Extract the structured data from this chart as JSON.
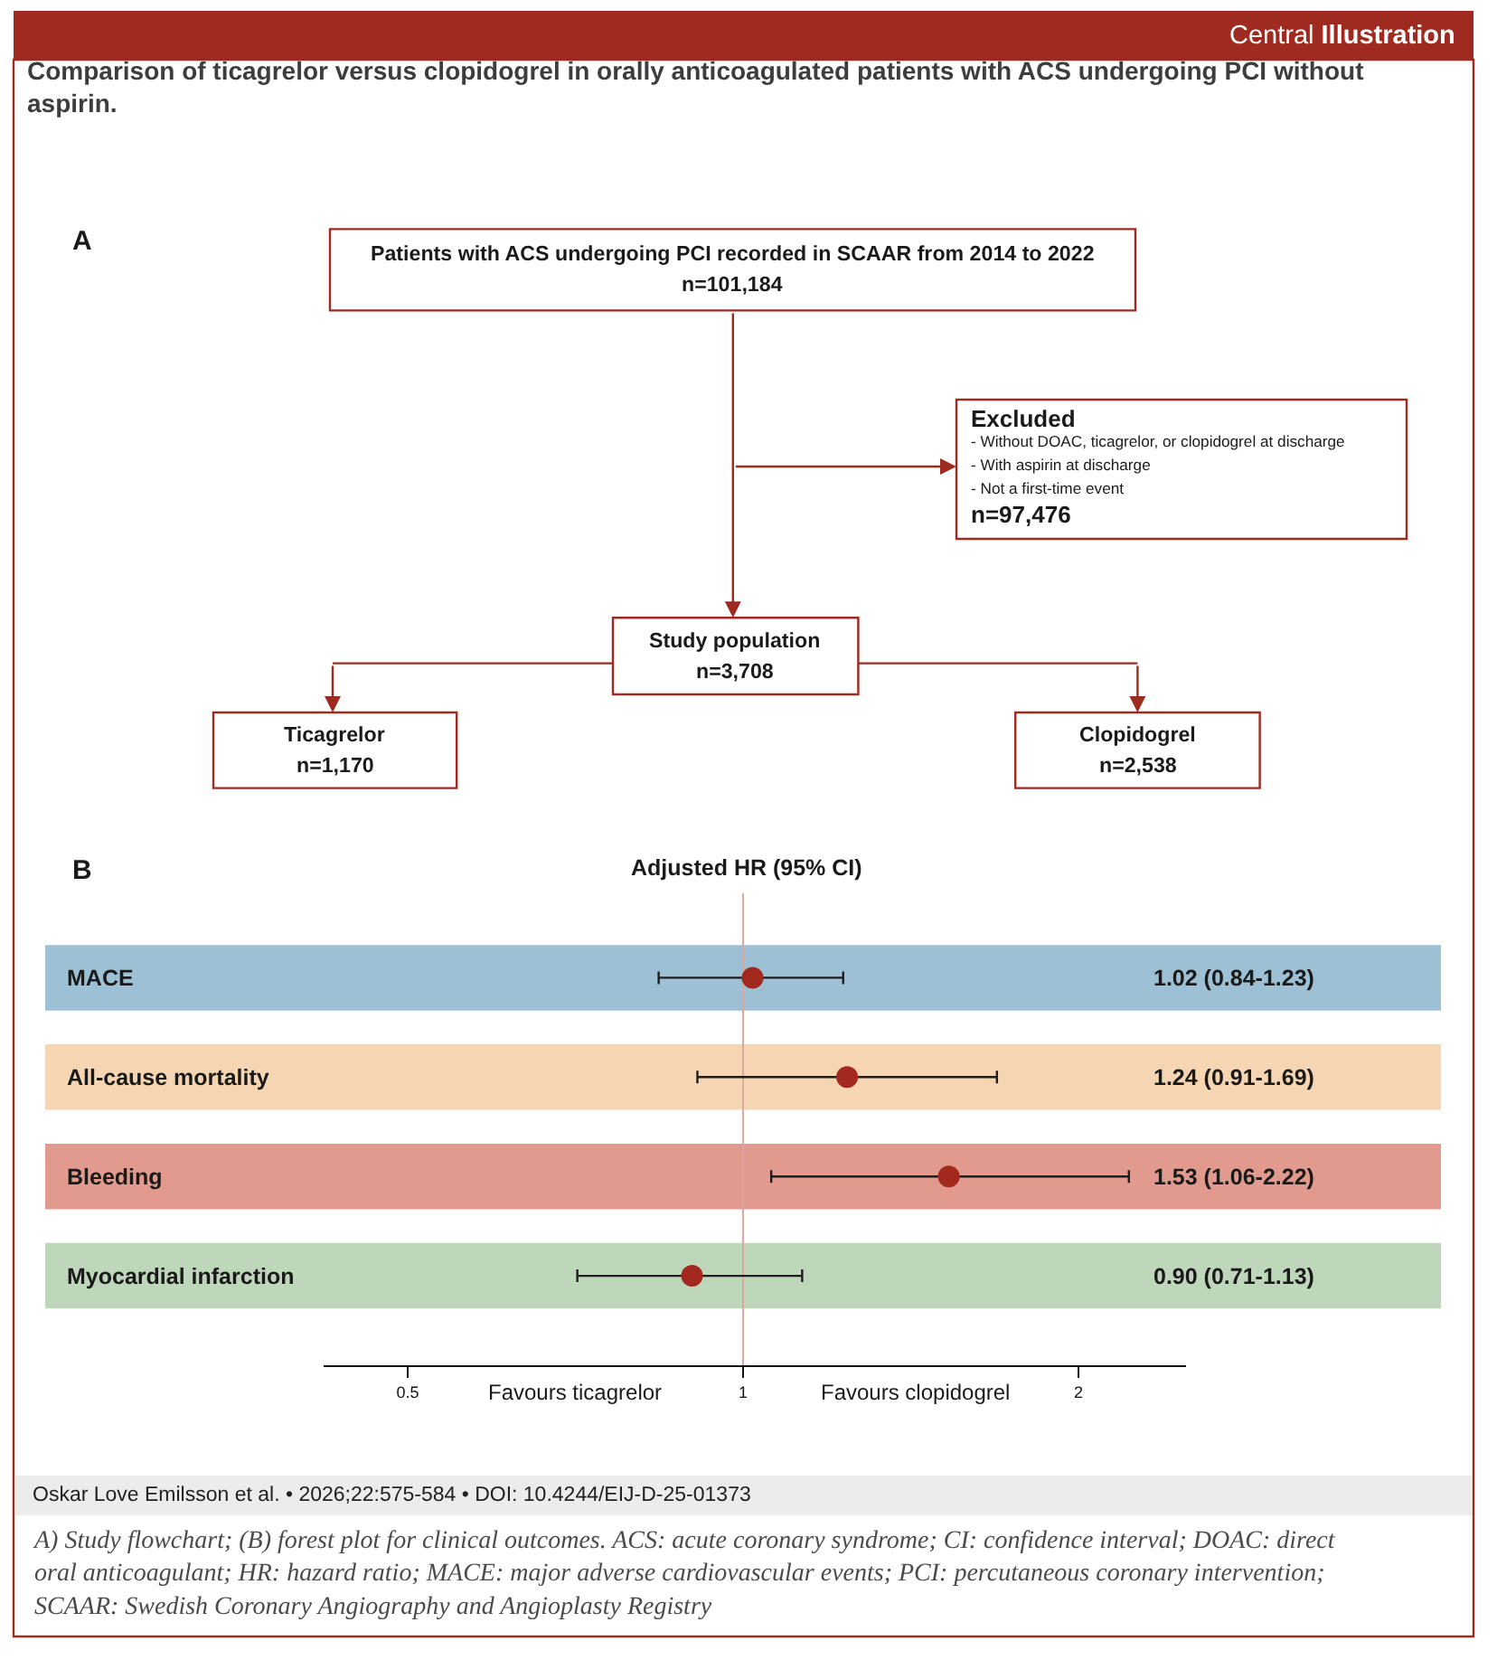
{
  "chart_data": [
    {
      "type": "other",
      "title": "Comparison of ticagrelor versus clopidogrel in orally anticoagulated patients with ACS undergoing PCI without\naspirin.",
      "annotations": [
        "Central Illustration",
        "A",
        "Patients with ACS undergoing PCI recorded in SCAAR from 2014 to 2022\nn=101,184",
        "Excluded\n- Without DOAC, ticagrelor, or clopidogrel at discharge\n- With aspirin at discharge\n- Not a first-time event\nn=97,476",
        "Study population\nn=3,708",
        "Ticagrelor\nn=1,170",
        "Clopidogrel\nn=2,538"
      ]
    },
    {
      "type": "scatter",
      "orientation": "horizontal",
      "title": "Adjusted HR (95% CI)",
      "categories": [
        "MACE",
        "All-cause mortality",
        "Bleeding",
        "Myocardial infarction"
      ],
      "values": [
        1.02,
        1.24,
        1.53,
        0.9
      ],
      "errors": [
        [
          0.84,
          1.23
        ],
        [
          0.91,
          1.69
        ],
        [
          1.06,
          2.22
        ],
        [
          0.71,
          1.13
        ]
      ],
      "value_labels": [
        "1.02 (0.84-1.23)",
        "1.24 (0.91-1.69)",
        "1.53 (1.06-2.22)",
        "0.90 (0.71-1.13)"
      ],
      "color": "#a3281e",
      "marker": "circle",
      "log": "x",
      "xlim": [
        0.42,
        2.5
      ],
      "xticks": [
        0.5,
        1,
        2
      ],
      "ref_lines": [
        {
          "axis": "x",
          "value": 1,
          "color": "#d9a89e"
        }
      ],
      "bands": [
        {
          "axis": "y",
          "from": "MACE",
          "to": "MACE",
          "color": "#9dc0d5"
        },
        {
          "axis": "y",
          "from": "All-cause mortality",
          "to": "All-cause mortality",
          "color": "#f6d6b2"
        },
        {
          "axis": "y",
          "from": "Bleeding",
          "to": "Bleeding",
          "color": "#e19a8d"
        },
        {
          "axis": "y",
          "from": "Myocardial infarction",
          "to": "Myocardial infarction",
          "color": "#bed6ba"
        }
      ],
      "annotations": [
        "B",
        "Favours ticagrelor",
        "Favours clopidogrel",
        "Oskar Love Emilsson et al. • 2026;22:575-584 • DOI: 10.4244/EIJ-D-25-01373",
        "A) Study flowchart; (B) forest plot for clinical outcomes. ACS: acute coronary syndrome; CI: confidence interval; DOAC: direct\noral anticoagulant; HR: hazard ratio; MACE: major adverse cardiovascular events; PCI: percutaneous coronary intervention;\nSCAAR: Swedish Coronary Angiography and Angioplasty Registry"
      ]
    }
  ]
}
